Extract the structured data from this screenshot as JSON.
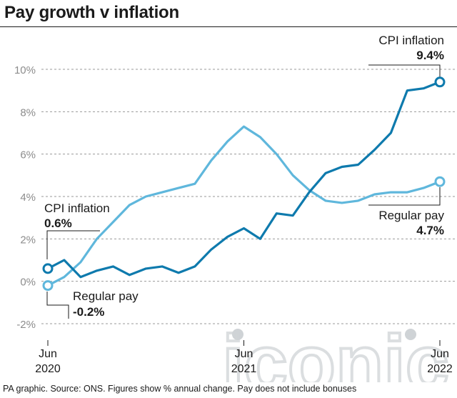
{
  "title": "Pay growth v inflation",
  "footer": "PA graphic. Source: ONS. Figures show % annual change. Pay does not include bonuses",
  "watermark": "iconic",
  "colors": {
    "cpi": "#0e7aad",
    "pay": "#5fb7dc",
    "grid": "#9a9a9a",
    "axis_text": "#8c8c8c",
    "annotation": "#1a1a1a",
    "watermark": "#cfd3d6"
  },
  "annotations": {
    "cpi_start_label": "CPI inflation",
    "cpi_start_value": "0.6%",
    "pay_start_label": "Regular pay",
    "pay_start_value": "-0.2%",
    "cpi_end_label": "CPI inflation",
    "cpi_end_value": "9.4%",
    "pay_end_label": "Regular pay",
    "pay_end_value": "4.7%"
  },
  "chart_data": {
    "type": "line",
    "title": "Pay growth v inflation",
    "xlabel": "",
    "ylabel": "",
    "ylim": [
      -2,
      10
    ],
    "y_ticks": [
      "-2%",
      "0%",
      "2%",
      "4%",
      "6%",
      "8%",
      "10%"
    ],
    "y_tick_values": [
      -2,
      0,
      2,
      4,
      6,
      8,
      10
    ],
    "x": [
      "2020-06",
      "2020-07",
      "2020-08",
      "2020-09",
      "2020-10",
      "2020-11",
      "2020-12",
      "2021-01",
      "2021-02",
      "2021-03",
      "2021-04",
      "2021-05",
      "2021-06",
      "2021-07",
      "2021-08",
      "2021-09",
      "2021-10",
      "2021-11",
      "2021-12",
      "2022-01",
      "2022-02",
      "2022-03",
      "2022-04",
      "2022-05",
      "2022-06"
    ],
    "x_tick_labels": [
      {
        "x": "2020-06",
        "line1": "Jun",
        "line2": "2020"
      },
      {
        "x": "2021-06",
        "line1": "Jun",
        "line2": "2021"
      },
      {
        "x": "2022-06",
        "line1": "Jun",
        "line2": "2022"
      }
    ],
    "grid": true,
    "series": [
      {
        "name": "CPI inflation",
        "color": "#0e7aad",
        "values": [
          0.6,
          1.0,
          0.2,
          0.5,
          0.7,
          0.3,
          0.6,
          0.7,
          0.4,
          0.7,
          1.5,
          2.1,
          2.5,
          2.0,
          3.2,
          3.1,
          4.2,
          5.1,
          5.4,
          5.5,
          6.2,
          7.0,
          9.0,
          9.1,
          9.4
        ]
      },
      {
        "name": "Regular pay",
        "color": "#5fb7dc",
        "values": [
          -0.2,
          0.2,
          0.9,
          2.0,
          2.8,
          3.6,
          4.0,
          4.2,
          4.4,
          4.6,
          5.7,
          6.6,
          7.3,
          6.8,
          6.0,
          5.0,
          4.3,
          3.8,
          3.7,
          3.8,
          4.1,
          4.2,
          4.2,
          4.4,
          4.7
        ]
      }
    ]
  }
}
